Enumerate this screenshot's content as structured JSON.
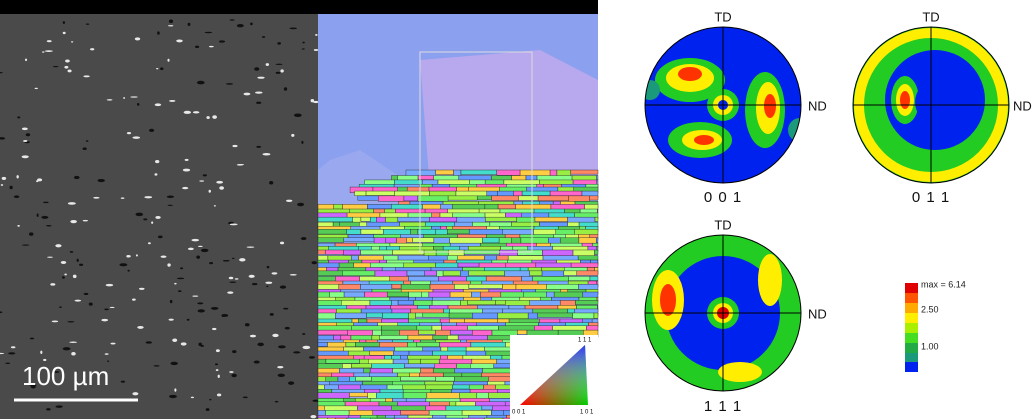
{
  "scale_bar": {
    "label": "100 µm"
  },
  "ipf_key": {
    "top": "1 1 1",
    "left": "0 0 1",
    "right": "1 0 1"
  },
  "pole_figures": [
    {
      "name": "0 0 1",
      "top": "TD",
      "right": "ND"
    },
    {
      "name": "0 1 1",
      "top": "TD",
      "right": "ND"
    },
    {
      "name": "1 1 1",
      "top": "TD",
      "right": "ND"
    }
  ],
  "legend": {
    "max": "max = 6.14",
    "ticks": [
      "2.50",
      "1.00"
    ]
  }
}
